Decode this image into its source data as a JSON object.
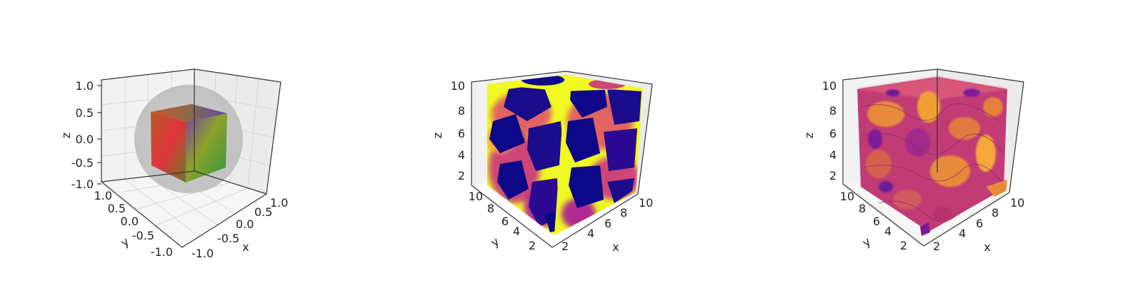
{
  "chart_data": [
    {
      "type": "3d-volume-rgb-cube",
      "xlabel": "x",
      "ylabel": "y",
      "zlabel": "z",
      "xlim": [
        -1.0,
        1.0
      ],
      "ylim": [
        -1.0,
        1.0
      ],
      "zlim": [
        -1.0,
        1.0
      ],
      "x_ticks": [
        "-1.0",
        "-0.5",
        "0.0",
        "0.5",
        "1.0"
      ],
      "y_ticks": [
        "-1.0",
        "-0.5",
        "0.0",
        "0.5",
        "1.0"
      ],
      "z_ticks": [
        "-1.0",
        "-0.5",
        "0.0",
        "0.5",
        "1.0"
      ],
      "grid": true,
      "colors": {
        "cube_left": "#d83a3a",
        "cube_right": "#6f9a2f",
        "cube_top": "#8a6a4a",
        "sphere": "#c9c9c9"
      }
    },
    {
      "type": "3d-volume-heatmap",
      "xlabel": "x",
      "ylabel": "y",
      "zlabel": "z",
      "xlim": [
        0,
        10
      ],
      "ylim": [
        0,
        10
      ],
      "zlim": [
        0,
        10
      ],
      "x_ticks": [
        "2",
        "4",
        "6",
        "8",
        "10"
      ],
      "y_ticks": [
        "2",
        "4",
        "6",
        "8",
        "10"
      ],
      "z_ticks": [
        "2",
        "4",
        "6",
        "8",
        "10"
      ],
      "grid": true,
      "colormap": "plasma"
    },
    {
      "type": "3d-isosurface",
      "xlabel": "x",
      "ylabel": "y",
      "zlabel": "z",
      "xlim": [
        0,
        10
      ],
      "ylim": [
        0,
        10
      ],
      "zlim": [
        0,
        10
      ],
      "x_ticks": [
        "2",
        "4",
        "6",
        "8",
        "10"
      ],
      "y_ticks": [
        "2",
        "4",
        "6",
        "8",
        "10"
      ],
      "z_ticks": [
        "2",
        "4",
        "6",
        "8",
        "10"
      ],
      "grid": true,
      "colormap": "plasma"
    }
  ]
}
